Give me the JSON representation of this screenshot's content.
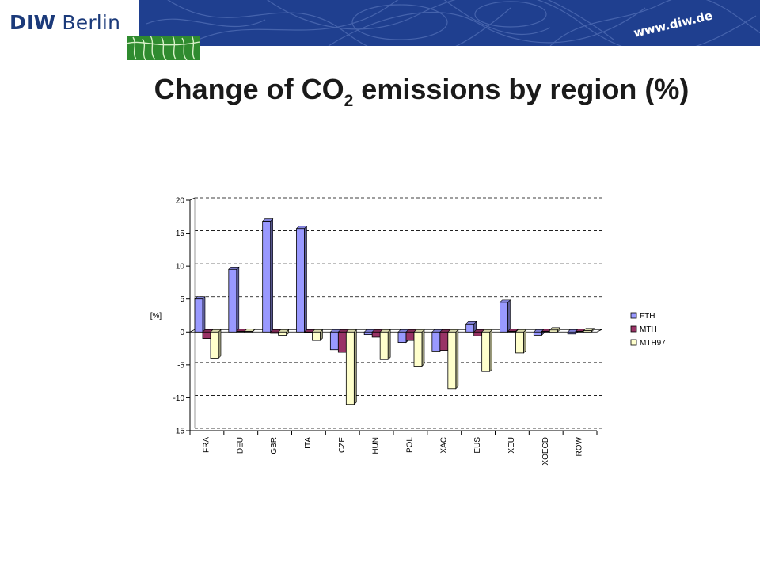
{
  "header": {
    "logo_bold": "DIW",
    "logo_regular": " Berlin",
    "url": "www.diw.de"
  },
  "title": {
    "prefix": "Change of CO",
    "subscript": "2",
    "suffix": " emissions by region (%)"
  },
  "colors": {
    "banner": "#1f3f8f",
    "logo": "#1b3a7a",
    "green": "#2f8b2f"
  },
  "chart_data": {
    "type": "bar",
    "ylabel": "[%]",
    "ylim": [
      -15,
      20
    ],
    "yticks": [
      20,
      15,
      10,
      5,
      0,
      -5,
      -10,
      -15
    ],
    "grid": "horizontal dashed",
    "legend_position": "right",
    "categories": [
      "FRA",
      "DEU",
      "GBR",
      "ITA",
      "CZE",
      "HUN",
      "POL",
      "XAC",
      "EUS",
      "XEU",
      "XOECD",
      "ROW"
    ],
    "series": [
      {
        "name": "FTH",
        "color": "#9999ff",
        "values": [
          5.0,
          9.5,
          16.8,
          15.7,
          -2.7,
          -0.4,
          -1.6,
          -2.9,
          1.2,
          4.5,
          -0.5,
          -0.3
        ]
      },
      {
        "name": "MTH",
        "color": "#993366",
        "values": [
          -1.0,
          0.1,
          -0.2,
          0.0,
          -3.1,
          -0.8,
          -1.3,
          -2.8,
          -0.6,
          0.1,
          0.1,
          0.1
        ]
      },
      {
        "name": "MTH97",
        "color": "#ffffcc",
        "values": [
          -4.0,
          0.1,
          -0.5,
          -1.3,
          -11.0,
          -4.2,
          -5.2,
          -8.6,
          -6.0,
          -3.2,
          0.3,
          0.2
        ]
      }
    ]
  }
}
